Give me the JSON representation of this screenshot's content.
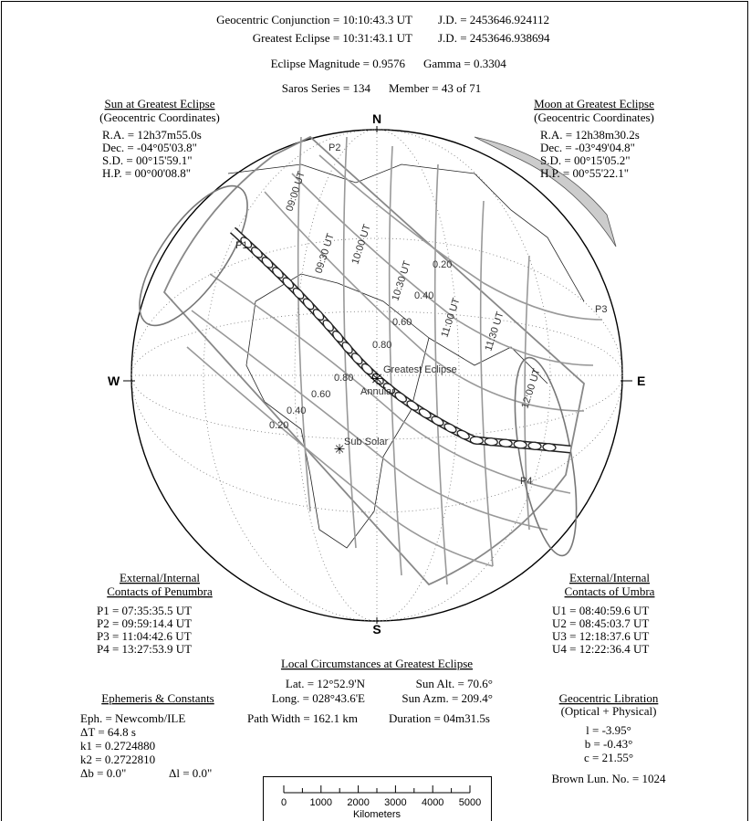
{
  "header": {
    "conjunction": "Geocentric Conjunction = 10:10:43.3 UT",
    "conjunction_jd": "J.D. = 2453646.924112",
    "greatest": "Greatest Eclipse = 10:31:43.1 UT",
    "greatest_jd": "J.D. = 2453646.938694",
    "magnitude": "Eclipse Magnitude = 0.9576",
    "gamma": "Gamma = 0.3304",
    "saros": "Saros Series = 134",
    "member": "Member = 43 of 71"
  },
  "sun": {
    "title": "Sun at Greatest Eclipse",
    "subtitle": "(Geocentric Coordinates)",
    "lines": [
      "R.A. = 12h37m55.0s",
      "Dec. = -04°05'03.8\"",
      "S.D. = 00°15'59.1\"",
      "H.P. = 00°00'08.8\""
    ]
  },
  "moon": {
    "title": "Moon at Greatest Eclipse",
    "subtitle": "(Geocentric Coordinates)",
    "lines": [
      "R.A. = 12h38m30.2s",
      "Dec. = -03°49'04.8\"",
      "S.D. = 00°15'05.2\"",
      "H.P. = 00°55'22.1\""
    ]
  },
  "penumbra": {
    "title": [
      "External/Internal",
      "Contacts of Penumbra"
    ],
    "lines": [
      "P1 = 07:35:35.5 UT",
      "P2 = 09:59:14.4 UT",
      "P3 = 11:04:42.6 UT",
      "P4 = 13:27:53.9 UT"
    ]
  },
  "umbra": {
    "title": [
      "External/Internal",
      "Contacts of Umbra"
    ],
    "lines": [
      "U1 = 08:40:59.6 UT",
      "U2 = 08:45:03.7 UT",
      "U3 = 12:18:37.6 UT",
      "U4 = 12:22:36.4 UT"
    ]
  },
  "local": {
    "title": "Local Circumstances at Greatest Eclipse",
    "lat": "Lat. = 12°52.9'N",
    "sun_alt": "Sun Alt. = 70.6°",
    "long": "Long. = 028°43.6'E",
    "sun_azm": "Sun Azm. = 209.4°",
    "path_width": "Path Width = 162.1 km",
    "duration": "Duration = 04m31.5s"
  },
  "ephemeris": {
    "title": "Ephemeris & Constants",
    "lines": [
      "Eph. = Newcomb/ILE",
      "ΔT =    64.8 s",
      "k1 = 0.2724880",
      "k2 = 0.2722810"
    ],
    "db": "Δb =  0.0\"",
    "dl": "Δl =  0.0\""
  },
  "libration": {
    "title": "Geocentric Libration",
    "subtitle": "(Optical + Physical)",
    "lines": [
      "l =  -3.95°",
      "b =  -0.43°",
      "c =  21.55°"
    ],
    "brown": "Brown Lun. No. = 1024"
  },
  "scale": {
    "ticks": [
      "0",
      "1000",
      "2000",
      "3000",
      "4000",
      "5000"
    ],
    "label": "Kilometers"
  },
  "globe": {
    "north": "N",
    "south": "S",
    "east": "E",
    "west": "W",
    "contacts": [
      "P1",
      "P2",
      "P3",
      "P4"
    ],
    "greatest": "Greatest Eclipse",
    "annular": "Annular",
    "sub_solar": "Sub Solar",
    "times": [
      "09:00 UT",
      "09:30 UT",
      "10:00 UT",
      "10:30 UT",
      "11:00 UT",
      "11:30 UT",
      "12:00 UT"
    ],
    "magnitudes": [
      "0.20",
      "0.40",
      "0.60",
      "0.80",
      "0.80",
      "0.60",
      "0.40",
      "0.20"
    ]
  }
}
